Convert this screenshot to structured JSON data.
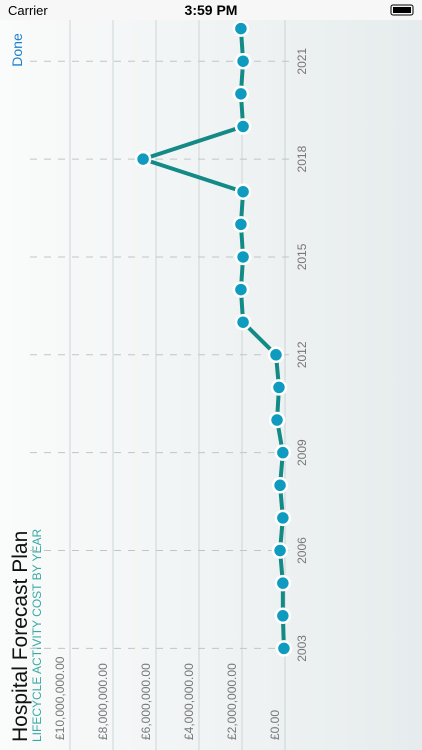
{
  "status_bar": {
    "carrier": "Carrier",
    "time": "3:59 PM"
  },
  "done_button": "Done",
  "chart_data": {
    "type": "line",
    "title": "Hospital Forecast Plan",
    "subtitle": "LIFECYCLE ACTIVITY COST BY YEAR",
    "x": [
      2003,
      2004,
      2005,
      2006,
      2007,
      2008,
      2009,
      2010,
      2011,
      2012,
      2013,
      2014,
      2015,
      2016,
      2017,
      2018,
      2019,
      2020,
      2021,
      2022
    ],
    "series": [
      {
        "name": "Lifecycle activity cost",
        "color": "#138a85",
        "marker_color": "#0e9bbf",
        "values": [
          50000,
          100000,
          100000,
          230000,
          100000,
          230000,
          100000,
          370000,
          280000,
          420000,
          1950000,
          2050000,
          1950000,
          2050000,
          1950000,
          6600000,
          1950000,
          2050000,
          1950000,
          2050000
        ]
      }
    ],
    "xlim": [
      2002,
      2023
    ],
    "xticks": [
      2003,
      2006,
      2009,
      2012,
      2015,
      2018,
      2021
    ],
    "ylim": [
      0,
      10000000
    ],
    "yticks": [
      {
        "value": 0,
        "label": "£0.00"
      },
      {
        "value": 2000000,
        "label": "£2,000,000.00"
      },
      {
        "value": 4000000,
        "label": "£4,000,000.00"
      },
      {
        "value": 6000000,
        "label": "£6,000,000.00"
      },
      {
        "value": 8000000,
        "label": "£8,000,000.00"
      },
      {
        "value": 10000000,
        "label": "£10,000,000.00"
      }
    ],
    "grid": true
  }
}
